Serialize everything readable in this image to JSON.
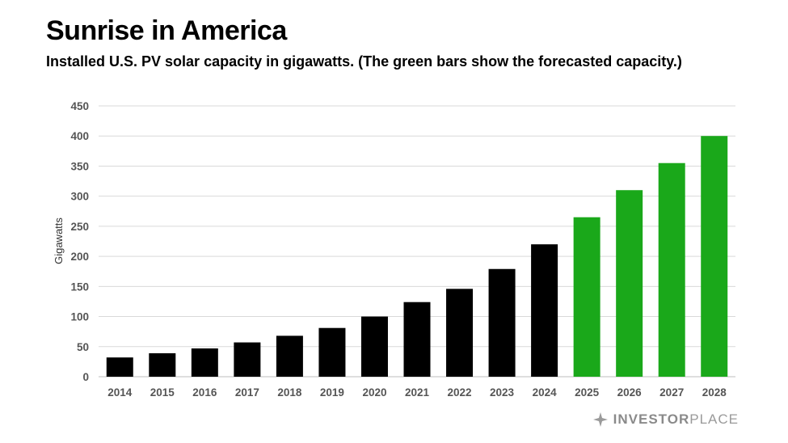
{
  "title": "Sunrise in America",
  "subtitle": "Installed U.S. PV solar capacity in gigawatts. (The green bars show the forecasted capacity.)",
  "logo": {
    "part1": "INVESTOR",
    "part2": "PLACE"
  },
  "colors": {
    "actual": "#000000",
    "forecast": "#1aa81a",
    "grid": "#d9d9d9"
  },
  "chart_data": {
    "type": "bar",
    "categories": [
      "2014",
      "2015",
      "2016",
      "2017",
      "2018",
      "2019",
      "2020",
      "2021",
      "2022",
      "2023",
      "2024",
      "2025",
      "2026",
      "2027",
      "2028"
    ],
    "values": [
      32,
      39,
      47,
      57,
      68,
      81,
      100,
      124,
      146,
      179,
      220,
      265,
      310,
      355,
      400
    ],
    "forecast": [
      false,
      false,
      false,
      false,
      false,
      false,
      false,
      false,
      false,
      false,
      false,
      true,
      true,
      true,
      true
    ],
    "ylabel": "Gigawatts",
    "xlabel": "",
    "ylim": [
      0,
      450
    ],
    "yticks": [
      0,
      50,
      100,
      150,
      200,
      250,
      300,
      350,
      400,
      450
    ],
    "grid": true,
    "legend": "none"
  }
}
